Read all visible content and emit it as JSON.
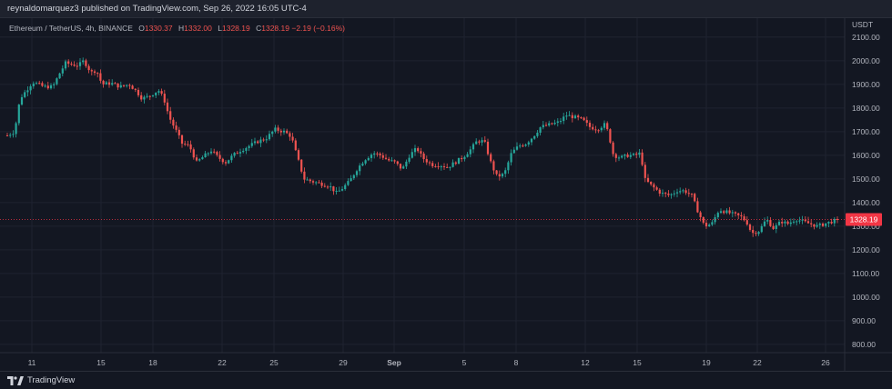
{
  "header": {
    "publisher": "reynaldomarquez3 published on TradingView.com, Sep 26, 2022 16:05 UTC-4"
  },
  "legend": {
    "symbol": "Ethereum / TetherUS, 4h, BINANCE",
    "open_label": "O",
    "open": "1330.37",
    "high_label": "H",
    "high": "1332.00",
    "low_label": "L",
    "low": "1328.19",
    "close_label": "C",
    "close": "1328.19",
    "change": "−2.19 (−0.16%)"
  },
  "axis": {
    "currency": "USDT",
    "price_badge": "1328.19"
  },
  "footer": {
    "brand": "TradingView"
  },
  "colors": {
    "up": "#26a69a",
    "down": "#ef5350",
    "background": "#131722",
    "grid": "#1f2330",
    "badge": "#f23645"
  },
  "chart_data": {
    "type": "candlestick",
    "y_ticks": [
      "800.00",
      "900.00",
      "1000.00",
      "1100.00",
      "1200.00",
      "1300.00",
      "1400.00",
      "1500.00",
      "1600.00",
      "1700.00",
      "1800.00",
      "1900.00",
      "2000.00",
      "2100.00"
    ],
    "x_ticks": [
      "11",
      "15",
      "18",
      "22",
      "25",
      "29",
      "Sep",
      "5",
      "8",
      "12",
      "15",
      "19",
      "22",
      "26"
    ],
    "ylim": [
      765,
      2180
    ],
    "last_price": 1328.19,
    "path": [
      [
        0,
        1690
      ],
      [
        6,
        1680
      ],
      [
        16,
        1700
      ],
      [
        22,
        1840
      ],
      [
        30,
        1880
      ],
      [
        36,
        1910
      ],
      [
        48,
        1890
      ],
      [
        58,
        1890
      ],
      [
        66,
        1950
      ],
      [
        72,
        1990
      ],
      [
        78,
        1985
      ],
      [
        86,
        1980
      ],
      [
        92,
        2000
      ],
      [
        100,
        1950
      ],
      [
        106,
        1960
      ],
      [
        112,
        1900
      ],
      [
        122,
        1905
      ],
      [
        132,
        1890
      ],
      [
        142,
        1900
      ],
      [
        150,
        1870
      ],
      [
        156,
        1840
      ],
      [
        164,
        1850
      ],
      [
        174,
        1875
      ],
      [
        180,
        1840
      ],
      [
        186,
        1760
      ],
      [
        194,
        1700
      ],
      [
        200,
        1650
      ],
      [
        208,
        1640
      ],
      [
        216,
        1570
      ],
      [
        222,
        1590
      ],
      [
        232,
        1620
      ],
      [
        240,
        1590
      ],
      [
        248,
        1570
      ],
      [
        256,
        1600
      ],
      [
        264,
        1620
      ],
      [
        274,
        1640
      ],
      [
        284,
        1660
      ],
      [
        292,
        1670
      ],
      [
        302,
        1710
      ],
      [
        312,
        1700
      ],
      [
        320,
        1680
      ],
      [
        326,
        1600
      ],
      [
        334,
        1500
      ],
      [
        342,
        1490
      ],
      [
        352,
        1480
      ],
      [
        362,
        1470
      ],
      [
        370,
        1440
      ],
      [
        376,
        1460
      ],
      [
        384,
        1490
      ],
      [
        392,
        1540
      ],
      [
        400,
        1580
      ],
      [
        410,
        1610
      ],
      [
        418,
        1600
      ],
      [
        426,
        1580
      ],
      [
        434,
        1570
      ],
      [
        442,
        1540
      ],
      [
        450,
        1600
      ],
      [
        458,
        1630
      ],
      [
        464,
        1590
      ],
      [
        474,
        1560
      ],
      [
        482,
        1560
      ],
      [
        492,
        1550
      ],
      [
        500,
        1570
      ],
      [
        508,
        1590
      ],
      [
        516,
        1620
      ],
      [
        524,
        1660
      ],
      [
        532,
        1660
      ],
      [
        540,
        1560
      ],
      [
        546,
        1510
      ],
      [
        554,
        1520
      ],
      [
        562,
        1610
      ],
      [
        570,
        1640
      ],
      [
        578,
        1650
      ],
      [
        586,
        1680
      ],
      [
        594,
        1720
      ],
      [
        604,
        1730
      ],
      [
        614,
        1740
      ],
      [
        622,
        1770
      ],
      [
        632,
        1760
      ],
      [
        640,
        1750
      ],
      [
        648,
        1720
      ],
      [
        656,
        1710
      ],
      [
        664,
        1730
      ],
      [
        668,
        1700
      ],
      [
        674,
        1600
      ],
      [
        682,
        1590
      ],
      [
        690,
        1600
      ],
      [
        698,
        1600
      ],
      [
        704,
        1610
      ],
      [
        708,
        1500
      ],
      [
        716,
        1470
      ],
      [
        726,
        1440
      ],
      [
        736,
        1430
      ],
      [
        744,
        1450
      ],
      [
        752,
        1450
      ],
      [
        760,
        1430
      ],
      [
        766,
        1370
      ],
      [
        774,
        1300
      ],
      [
        782,
        1310
      ],
      [
        790,
        1370
      ],
      [
        798,
        1360
      ],
      [
        806,
        1350
      ],
      [
        814,
        1340
      ],
      [
        820,
        1320
      ],
      [
        826,
        1270
      ],
      [
        834,
        1280
      ],
      [
        842,
        1330
      ],
      [
        850,
        1290
      ],
      [
        858,
        1320
      ],
      [
        866,
        1310
      ],
      [
        874,
        1330
      ],
      [
        882,
        1320
      ],
      [
        890,
        1310
      ],
      [
        898,
        1300
      ],
      [
        906,
        1310
      ],
      [
        914,
        1320
      ],
      [
        922,
        1328
      ]
    ]
  }
}
